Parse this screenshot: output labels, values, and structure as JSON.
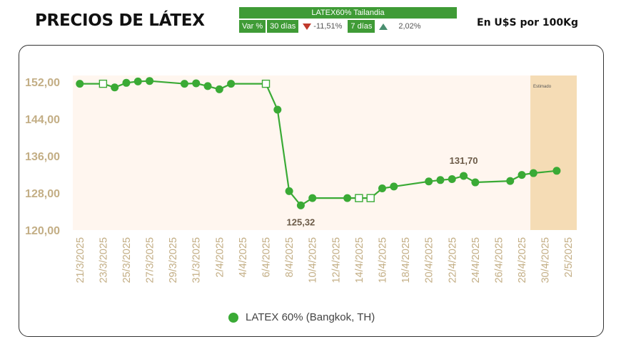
{
  "header": {
    "title": "PRECIOS DE LÁTEX",
    "unit": "En U$S por 100Kg"
  },
  "variation": {
    "title": "LATEX60% Tailandia",
    "label": "Var %",
    "period1": "30 días",
    "value1": "-11,51%",
    "period2": "7 días",
    "value2": "2,02%"
  },
  "colors": {
    "series": "#3aaa35",
    "estimated_band": "#f5dcb5",
    "plot_bg": "#fff6ef",
    "axis_labels": "#c3ae85"
  },
  "chart_data": {
    "type": "line",
    "series": [
      {
        "name": "LATEX 60% (Bangkok, TH)",
        "points": [
          {
            "x": "21/3/2025",
            "y": 151.6
          },
          {
            "x": "23/3/2025",
            "y": 151.6,
            "marker": "hollow"
          },
          {
            "x": "24/3/2025",
            "y": 150.8
          },
          {
            "x": "25/3/2025",
            "y": 151.8
          },
          {
            "x": "26/3/2025",
            "y": 152.1
          },
          {
            "x": "27/3/2025",
            "y": 152.2
          },
          {
            "x": "30/3/2025",
            "y": 151.6
          },
          {
            "x": "31/3/2025",
            "y": 151.7
          },
          {
            "x": "1/4/2025",
            "y": 151.1
          },
          {
            "x": "2/4/2025",
            "y": 150.4
          },
          {
            "x": "3/4/2025",
            "y": 151.6
          },
          {
            "x": "6/4/2025",
            "y": 151.6,
            "marker": "hollow"
          },
          {
            "x": "7/4/2025",
            "y": 146.0
          },
          {
            "x": "8/4/2025",
            "y": 128.4
          },
          {
            "x": "9/4/2025",
            "y": 125.32
          },
          {
            "x": "10/4/2025",
            "y": 126.9
          },
          {
            "x": "13/4/2025",
            "y": 126.9
          },
          {
            "x": "14/4/2025",
            "y": 126.9,
            "marker": "hollow"
          },
          {
            "x": "15/4/2025",
            "y": 126.9,
            "marker": "hollow"
          },
          {
            "x": "16/4/2025",
            "y": 129.0
          },
          {
            "x": "17/4/2025",
            "y": 129.4
          },
          {
            "x": "20/4/2025",
            "y": 130.5
          },
          {
            "x": "21/4/2025",
            "y": 130.8
          },
          {
            "x": "22/4/2025",
            "y": 131.0
          },
          {
            "x": "23/4/2025",
            "y": 131.7
          },
          {
            "x": "24/4/2025",
            "y": 130.3
          },
          {
            "x": "27/4/2025",
            "y": 130.6
          },
          {
            "x": "28/4/2025",
            "y": 131.9
          },
          {
            "x": "29/4/2025",
            "y": 132.3
          },
          {
            "x": "1/5/2025",
            "y": 132.8
          }
        ]
      }
    ],
    "ylim": [
      120,
      152
    ],
    "yticks": [
      "120,00",
      "128,00",
      "136,00",
      "144,00",
      "152,00"
    ],
    "xticks": [
      "21/3/2025",
      "23/3/2025",
      "25/3/2025",
      "27/3/2025",
      "29/3/2025",
      "31/3/2025",
      "2/4/2025",
      "4/4/2025",
      "6/4/2025",
      "8/4/2025",
      "10/4/2025",
      "12/4/2025",
      "14/4/2025",
      "16/4/2025",
      "18/4/2025",
      "20/4/2025",
      "22/4/2025",
      "24/4/2025",
      "26/4/2025",
      "28/4/2025",
      "30/4/2025",
      "2/5/2025"
    ],
    "estimated_region": {
      "from": "28/4/2025",
      "to": "2/5/2025",
      "label": "Estimado"
    },
    "annotations": [
      {
        "x": "9/4/2025",
        "y": 125.32,
        "text": "125,32",
        "position": "below"
      },
      {
        "x": "23/4/2025",
        "y": 131.7,
        "text": "131,70",
        "position": "above"
      }
    ],
    "legend_position": "bottom-center",
    "grid": false
  }
}
